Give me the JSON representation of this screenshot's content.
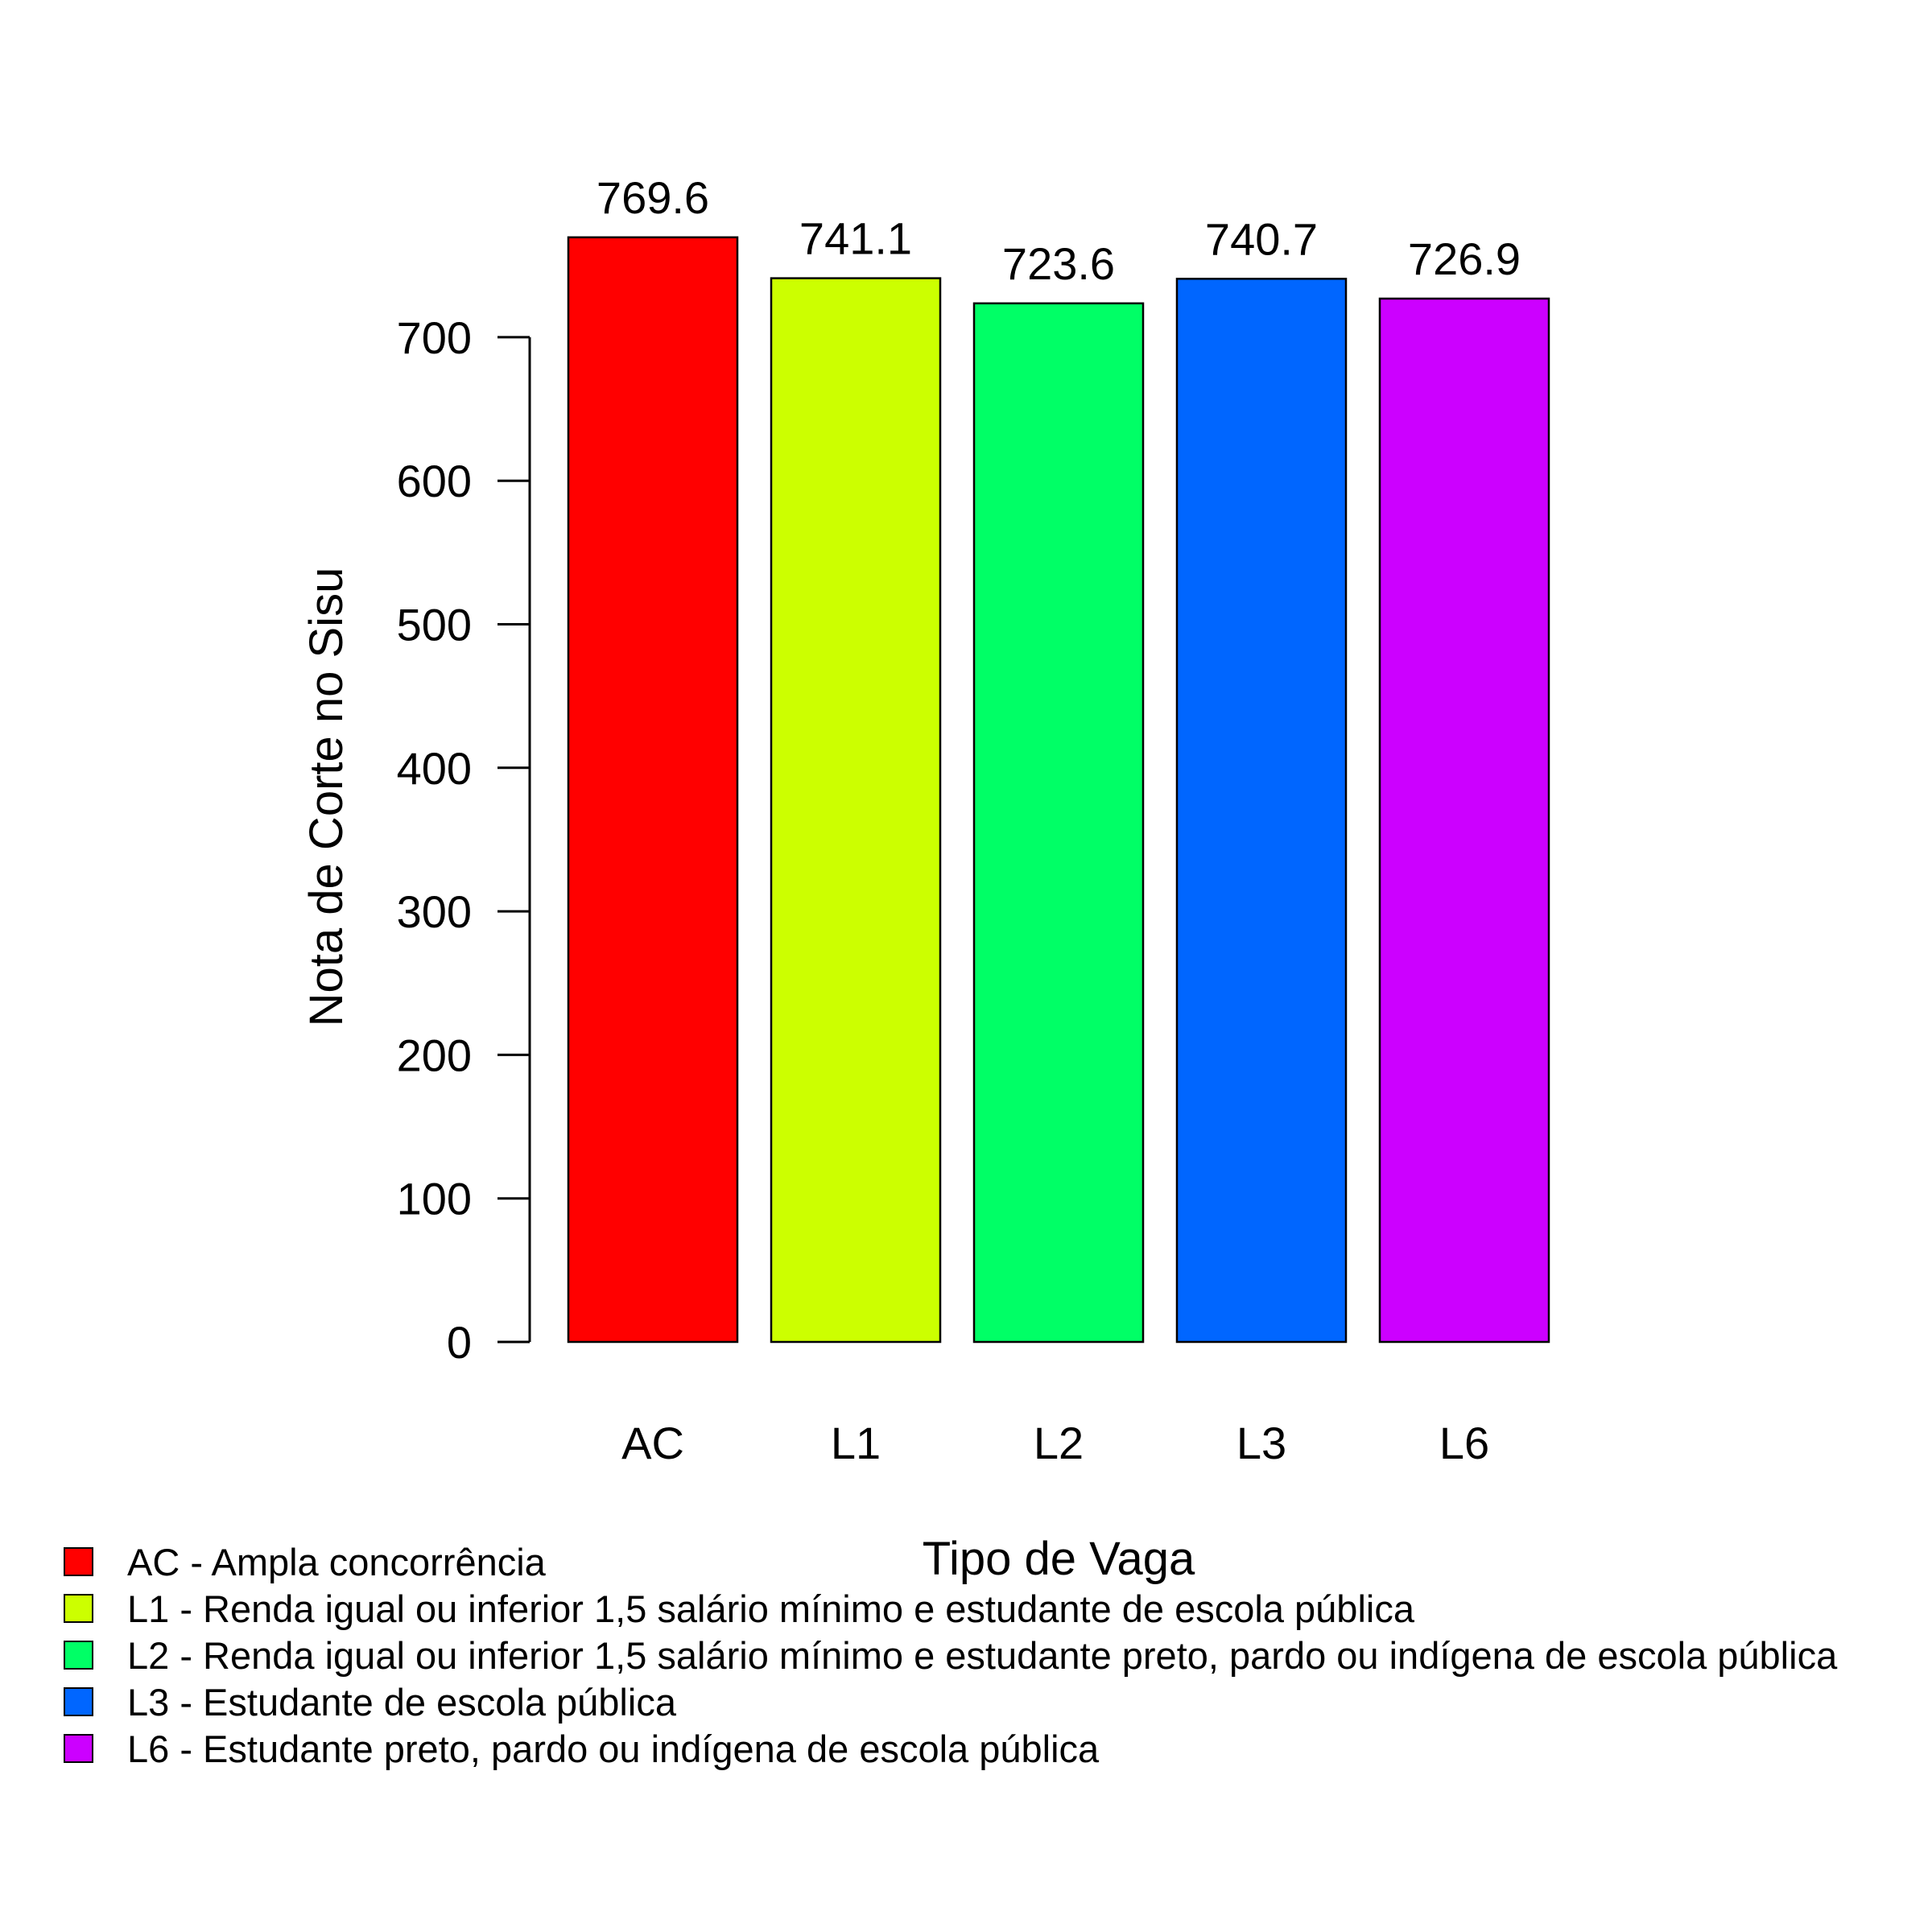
{
  "chart_data": {
    "type": "bar",
    "categories": [
      "AC",
      "L1",
      "L2",
      "L3",
      "L6"
    ],
    "values": [
      769.6,
      741.1,
      723.6,
      740.7,
      726.9
    ],
    "value_labels": [
      "769.6",
      "741.1",
      "723.6",
      "740.7",
      "726.9"
    ],
    "colors": [
      "#FF0000",
      "#CCFF00",
      "#00FF66",
      "#0066FF",
      "#CC00FF"
    ],
    "xlabel": "Tipo de Vaga",
    "ylabel": "Nota de Corte no Sisu",
    "ylim": [
      0,
      700
    ],
    "yticks": [
      0,
      100,
      200,
      300,
      400,
      500,
      600,
      700
    ],
    "ytick_labels": [
      "0",
      "100",
      "200",
      "300",
      "400",
      "500",
      "600",
      "700"
    ],
    "grid": false,
    "legend": {
      "placement": "bottom-left",
      "entries": [
        "AC - Ampla concorrência",
        "L1 - Renda igual ou inferior 1,5 salário mínimo e estudante de escola pública",
        "L2 - Renda igual ou inferior 1,5 salário mínimo e estudante preto, pardo ou indígena de escola pública",
        "L3 - Estudante de escola pública",
        "L6 - Estudante preto, pardo ou indígena de escola pública"
      ]
    }
  }
}
